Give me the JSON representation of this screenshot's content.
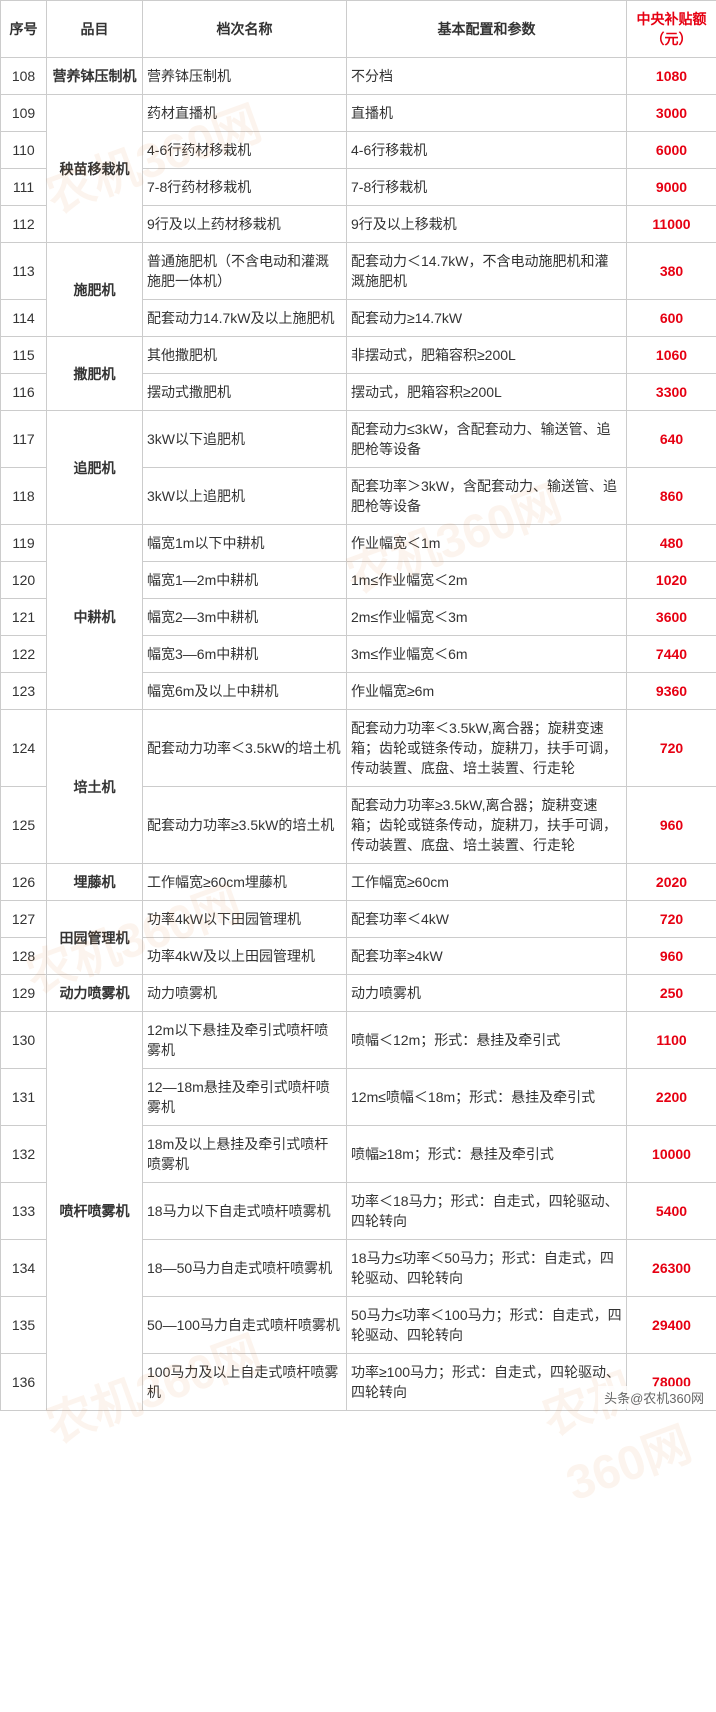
{
  "colors": {
    "red": "#e60012",
    "border": "#cccccc",
    "text": "#333333",
    "watermark": "#e08030"
  },
  "columns": [
    {
      "key": "seq",
      "label": "序号"
    },
    {
      "key": "category",
      "label": "品目"
    },
    {
      "key": "tier",
      "label": "档次名称"
    },
    {
      "key": "spec",
      "label": "基本配置和参数"
    },
    {
      "key": "amount",
      "label": "中央补贴额（元）"
    }
  ],
  "groups": [
    {
      "category": "营养钵压制机",
      "rows": [
        {
          "seq": "108",
          "tier": "营养钵压制机",
          "spec": "不分档",
          "amount": "1080"
        }
      ]
    },
    {
      "category": "秧苗移栽机",
      "rows": [
        {
          "seq": "109",
          "tier": "药材直播机",
          "spec": "直播机",
          "amount": "3000"
        },
        {
          "seq": "110",
          "tier": "4-6行药材移栽机",
          "spec": "4-6行移栽机",
          "amount": "6000"
        },
        {
          "seq": "111",
          "tier": "7-8行药材移栽机",
          "spec": "7-8行移栽机",
          "amount": "9000"
        },
        {
          "seq": "112",
          "tier": "9行及以上药材移栽机",
          "spec": "9行及以上移栽机",
          "amount": "11000"
        }
      ]
    },
    {
      "category": "施肥机",
      "rows": [
        {
          "seq": "113",
          "tier": "普通施肥机（不含电动和灌溉施肥一体机）",
          "spec": "配套动力＜14.7kW，不含电动施肥机和灌溉施肥机",
          "amount": "380"
        },
        {
          "seq": "114",
          "tier": "配套动力14.7kW及以上施肥机",
          "spec": "配套动力≥14.7kW",
          "amount": "600"
        }
      ]
    },
    {
      "category": "撒肥机",
      "rows": [
        {
          "seq": "115",
          "tier": "其他撒肥机",
          "spec": "非摆动式，肥箱容积≥200L",
          "amount": "1060"
        },
        {
          "seq": "116",
          "tier": "摆动式撒肥机",
          "spec": "摆动式，肥箱容积≥200L",
          "amount": "3300"
        }
      ]
    },
    {
      "category": "追肥机",
      "rows": [
        {
          "seq": "117",
          "tier": "3kW以下追肥机",
          "spec": "配套动力≤3kW，含配套动力、输送管、追肥枪等设备",
          "amount": "640"
        },
        {
          "seq": "118",
          "tier": "3kW以上追肥机",
          "spec": "配套功率＞3kW，含配套动力、输送管、追肥枪等设备",
          "amount": "860"
        }
      ]
    },
    {
      "category": "中耕机",
      "rows": [
        {
          "seq": "119",
          "tier": "幅宽1m以下中耕机",
          "spec": "作业幅宽＜1m",
          "amount": "480"
        },
        {
          "seq": "120",
          "tier": "幅宽1—2m中耕机",
          "spec": "1m≤作业幅宽＜2m",
          "amount": "1020"
        },
        {
          "seq": "121",
          "tier": "幅宽2—3m中耕机",
          "spec": "2m≤作业幅宽＜3m",
          "amount": "3600"
        },
        {
          "seq": "122",
          "tier": "幅宽3—6m中耕机",
          "spec": "3m≤作业幅宽＜6m",
          "amount": "7440"
        },
        {
          "seq": "123",
          "tier": "幅宽6m及以上中耕机",
          "spec": "作业幅宽≥6m",
          "amount": "9360"
        }
      ]
    },
    {
      "category": "培土机",
      "rows": [
        {
          "seq": "124",
          "tier": "配套动力功率＜3.5kW的培土机",
          "spec": "配套动力功率＜3.5kW,离合器；旋耕变速箱；齿轮或链条传动，旋耕刀，扶手可调，传动装置、底盘、培土装置、行走轮",
          "amount": "720"
        },
        {
          "seq": "125",
          "tier": "配套动力功率≥3.5kW的培土机",
          "spec": "配套动力功率≥3.5kW,离合器；旋耕变速箱；齿轮或链条传动，旋耕刀，扶手可调，传动装置、底盘、培土装置、行走轮",
          "amount": "960"
        }
      ]
    },
    {
      "category": "埋藤机",
      "rows": [
        {
          "seq": "126",
          "tier": "工作幅宽≥60cm埋藤机",
          "spec": "工作幅宽≥60cm",
          "amount": "2020"
        }
      ]
    },
    {
      "category": "田园管理机",
      "rows": [
        {
          "seq": "127",
          "tier": "功率4kW以下田园管理机",
          "spec": "配套功率＜4kW",
          "amount": "720"
        },
        {
          "seq": "128",
          "tier": "功率4kW及以上田园管理机",
          "spec": "配套功率≥4kW",
          "amount": "960"
        }
      ]
    },
    {
      "category": "动力喷雾机",
      "rows": [
        {
          "seq": "129",
          "tier": "动力喷雾机",
          "spec": "动力喷雾机",
          "amount": "250"
        }
      ]
    },
    {
      "category": "喷杆喷雾机",
      "rows": [
        {
          "seq": "130",
          "tier": "12m以下悬挂及牵引式喷杆喷雾机",
          "spec": "喷幅＜12m；形式：悬挂及牵引式",
          "amount": "1100"
        },
        {
          "seq": "131",
          "tier": "12—18m悬挂及牵引式喷杆喷雾机",
          "spec": "12m≤喷幅＜18m；形式：悬挂及牵引式",
          "amount": "2200"
        },
        {
          "seq": "132",
          "tier": "18m及以上悬挂及牵引式喷杆喷雾机",
          "spec": "喷幅≥18m；形式：悬挂及牵引式",
          "amount": "10000"
        },
        {
          "seq": "133",
          "tier": "18马力以下自走式喷杆喷雾机",
          "spec": "功率＜18马力；形式：自走式，四轮驱动、四轮转向",
          "amount": "5400"
        },
        {
          "seq": "134",
          "tier": "18—50马力自走式喷杆喷雾机",
          "spec": "18马力≤功率＜50马力；形式：自走式，四轮驱动、四轮转向",
          "amount": "26300"
        },
        {
          "seq": "135",
          "tier": "50—100马力自走式喷杆喷雾机",
          "spec": "50马力≤功率＜100马力；形式：自走式，四轮驱动、四轮转向",
          "amount": "29400"
        },
        {
          "seq": "136",
          "tier": "100马力及以上自走式喷杆喷雾机",
          "spec": "功率≥100马力；形式：自走式，四轮驱动、四轮转向",
          "amount": "78000"
        }
      ]
    }
  ],
  "watermark_text": "农机360网",
  "footer_attribution": "头条@农机360网"
}
